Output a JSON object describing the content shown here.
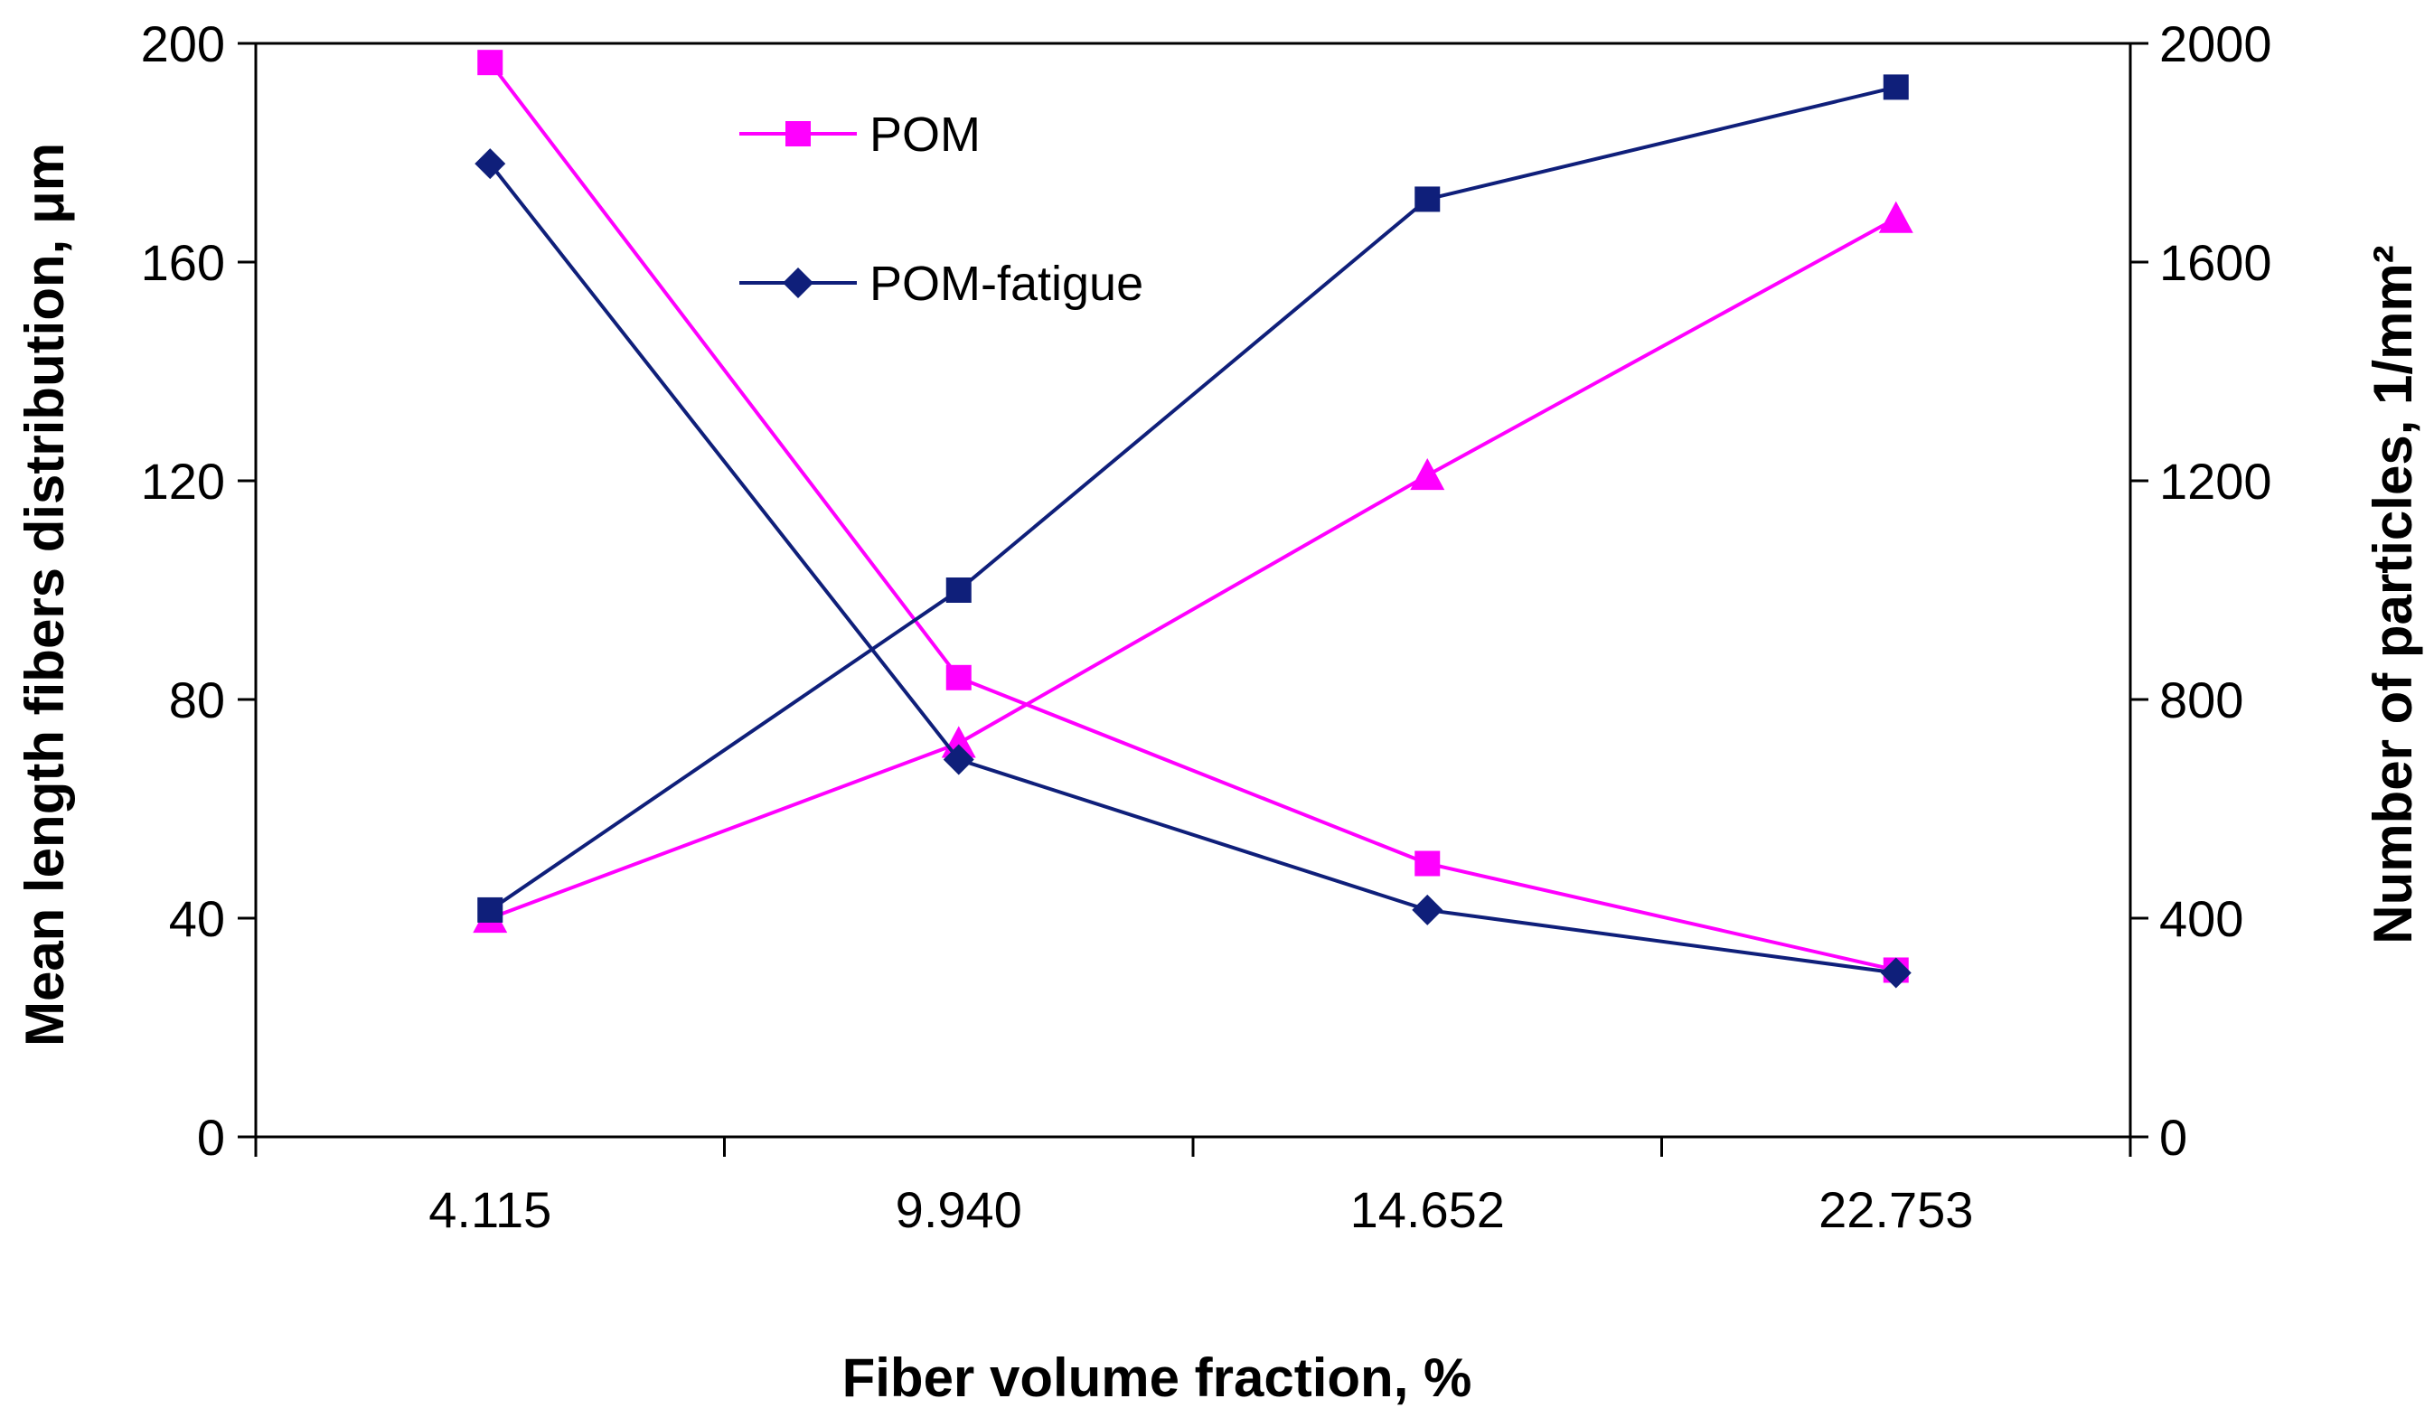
{
  "chart_data": {
    "type": "line",
    "title": "",
    "xlabel": "Fiber volume fraction, %",
    "ylabel_left": "Mean length fibers distribution, μm",
    "ylabel_right": "Number of particles, 1/mm²",
    "categories": [
      "4.115",
      "9.940",
      "14.652",
      "22.753"
    ],
    "ylim_left": [
      0,
      200
    ],
    "ylim_right": [
      0,
      2000
    ],
    "yticks_left": [
      0,
      40,
      80,
      120,
      160,
      200
    ],
    "yticks_right": [
      0,
      400,
      800,
      1200,
      1600,
      2000
    ],
    "grid": false,
    "legend": {
      "position": "top-left",
      "entries": [
        "POM",
        "POM-fatigue"
      ]
    },
    "series": [
      {
        "name": "POM",
        "axis": "left",
        "metric": "mean length",
        "marker": "square",
        "color": "#ff00ff",
        "values": [
          196.5,
          84,
          50,
          30.5
        ]
      },
      {
        "name": "POM",
        "axis": "right",
        "metric": "number of particles",
        "marker": "triangle",
        "color": "#ff00ff",
        "values": [
          400,
          720,
          1210,
          1680
        ]
      },
      {
        "name": "POM-fatigue",
        "axis": "left",
        "metric": "mean length",
        "marker": "diamond",
        "color": "#0f1f7a",
        "values": [
          178,
          69,
          41.5,
          30
        ]
      },
      {
        "name": "POM-fatigue",
        "axis": "right",
        "metric": "number of particles",
        "marker": "square",
        "color": "#0f1f7a",
        "values": [
          415,
          1000,
          1715,
          1920
        ]
      }
    ]
  }
}
